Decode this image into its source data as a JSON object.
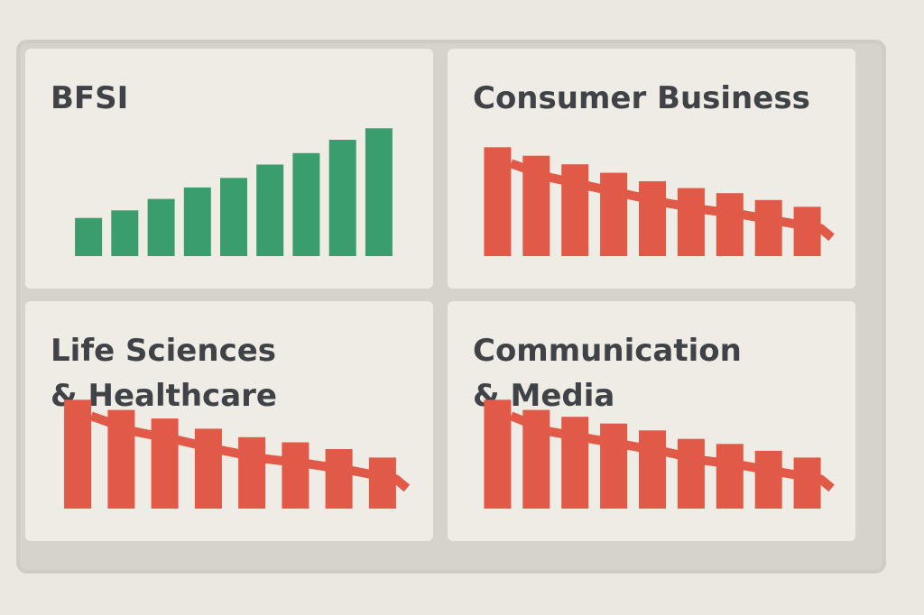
{
  "colors": {
    "positive": "#3a9d6d",
    "negative": "#e05a47",
    "text": "#3f4247"
  },
  "chart_data": [
    {
      "type": "bar",
      "title": "BFSI",
      "trend": "up",
      "color": "#3a9d6d",
      "values": [
        2.0,
        2.4,
        3.0,
        3.6,
        4.1,
        4.8,
        5.4,
        6.1,
        6.7
      ],
      "ylim": [
        0,
        7
      ]
    },
    {
      "type": "bar",
      "title": "Consumer Business",
      "trend": "down",
      "color": "#e05a47",
      "values": [
        6.4,
        5.9,
        5.4,
        4.9,
        4.4,
        4.0,
        3.7,
        3.3,
        2.9
      ],
      "ylim": [
        0,
        7
      ]
    },
    {
      "type": "bar",
      "title": "Life Sciences\n& Healthcare",
      "trend": "down",
      "color": "#e05a47",
      "values": [
        6.4,
        5.8,
        5.3,
        4.7,
        4.2,
        3.9,
        3.5,
        3.0
      ],
      "ylim": [
        0,
        7
      ]
    },
    {
      "type": "bar",
      "title": "Communication\n& Media",
      "trend": "down",
      "color": "#e05a47",
      "values": [
        6.4,
        5.8,
        5.4,
        5.0,
        4.6,
        4.1,
        3.8,
        3.4,
        3.0
      ],
      "ylim": [
        0,
        7
      ]
    }
  ]
}
